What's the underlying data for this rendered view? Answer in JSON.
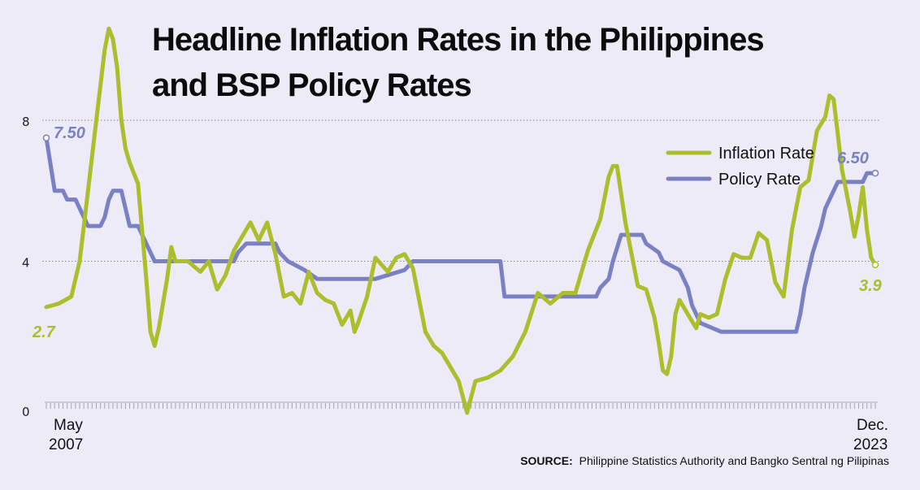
{
  "title_lines": [
    "Headline Inflation Rates in the Philippines",
    "and BSP Policy Rates"
  ],
  "source_label": "SOURCE:",
  "source_text": "Philippine Statistics Authority and Bangko Sentral ng Pilipinas",
  "start_date": [
    "May",
    "2007"
  ],
  "end_date": [
    "Dec.",
    "2023"
  ],
  "chart_data": {
    "type": "line",
    "x_range": [
      "2007-05",
      "2023-12"
    ],
    "ylim": [
      0,
      8
    ],
    "y_ticks": [
      "0",
      "4",
      "8"
    ],
    "grid": "horizontal dotted",
    "legend_position": "top-right",
    "colors": {
      "inflation": "#adbe2d",
      "policy": "#7a80c4"
    },
    "annotations": {
      "inflation_start": "2.7",
      "inflation_end": "3.9",
      "policy_start": "7.50",
      "policy_end": "6.50"
    },
    "series": [
      {
        "name": "Inflation Rate",
        "key": "inflation",
        "points": [
          [
            "2007-05",
            2.7
          ],
          [
            "2007-08",
            2.8
          ],
          [
            "2007-11",
            3.0
          ],
          [
            "2008-01",
            4.0
          ],
          [
            "2008-03",
            6.0
          ],
          [
            "2008-05",
            8.0
          ],
          [
            "2008-07",
            10.0
          ],
          [
            "2008-08",
            10.6
          ],
          [
            "2008-09",
            10.3
          ],
          [
            "2008-10",
            9.5
          ],
          [
            "2008-11",
            8.0
          ],
          [
            "2008-12",
            7.2
          ],
          [
            "2009-01",
            6.8
          ],
          [
            "2009-03",
            6.2
          ],
          [
            "2009-05",
            3.5
          ],
          [
            "2009-06",
            2.0
          ],
          [
            "2009-07",
            1.6
          ],
          [
            "2009-08",
            2.1
          ],
          [
            "2009-10",
            3.5
          ],
          [
            "2009-11",
            4.4
          ],
          [
            "2009-12",
            4.0
          ],
          [
            "2010-03",
            4.0
          ],
          [
            "2010-06",
            3.7
          ],
          [
            "2010-08",
            4.0
          ],
          [
            "2010-10",
            3.2
          ],
          [
            "2010-12",
            3.6
          ],
          [
            "2011-02",
            4.3
          ],
          [
            "2011-04",
            4.7
          ],
          [
            "2011-06",
            5.1
          ],
          [
            "2011-08",
            4.6
          ],
          [
            "2011-10",
            5.1
          ],
          [
            "2011-12",
            4.2
          ],
          [
            "2012-02",
            3.0
          ],
          [
            "2012-04",
            3.1
          ],
          [
            "2012-06",
            2.8
          ],
          [
            "2012-08",
            3.7
          ],
          [
            "2012-10",
            3.1
          ],
          [
            "2012-12",
            2.9
          ],
          [
            "2013-02",
            2.8
          ],
          [
            "2013-04",
            2.2
          ],
          [
            "2013-06",
            2.6
          ],
          [
            "2013-07",
            2.0
          ],
          [
            "2013-08",
            2.3
          ],
          [
            "2013-10",
            3.0
          ],
          [
            "2013-12",
            4.1
          ],
          [
            "2014-03",
            3.7
          ],
          [
            "2014-05",
            4.1
          ],
          [
            "2014-07",
            4.2
          ],
          [
            "2014-09",
            3.8
          ],
          [
            "2014-10",
            3.2
          ],
          [
            "2014-12",
            2.0
          ],
          [
            "2015-02",
            1.6
          ],
          [
            "2015-04",
            1.4
          ],
          [
            "2015-06",
            1.0
          ],
          [
            "2015-08",
            0.6
          ],
          [
            "2015-10",
            -0.3
          ],
          [
            "2015-12",
            0.6
          ],
          [
            "2016-03",
            0.7
          ],
          [
            "2016-06",
            0.9
          ],
          [
            "2016-09",
            1.3
          ],
          [
            "2016-12",
            2.0
          ],
          [
            "2017-03",
            3.1
          ],
          [
            "2017-06",
            2.8
          ],
          [
            "2017-09",
            3.1
          ],
          [
            "2017-12",
            3.1
          ],
          [
            "2018-03",
            4.3
          ],
          [
            "2018-06",
            5.2
          ],
          [
            "2018-08",
            6.4
          ],
          [
            "2018-09",
            6.7
          ],
          [
            "2018-10",
            6.7
          ],
          [
            "2018-12",
            5.1
          ],
          [
            "2019-03",
            3.3
          ],
          [
            "2019-05",
            3.2
          ],
          [
            "2019-07",
            2.4
          ],
          [
            "2019-08",
            1.7
          ],
          [
            "2019-09",
            0.9
          ],
          [
            "2019-10",
            0.8
          ],
          [
            "2019-11",
            1.3
          ],
          [
            "2019-12",
            2.5
          ],
          [
            "2020-01",
            2.9
          ],
          [
            "2020-03",
            2.5
          ],
          [
            "2020-05",
            2.1
          ],
          [
            "2020-06",
            2.5
          ],
          [
            "2020-08",
            2.4
          ],
          [
            "2020-10",
            2.5
          ],
          [
            "2020-12",
            3.5
          ],
          [
            "2021-02",
            4.2
          ],
          [
            "2021-04",
            4.1
          ],
          [
            "2021-06",
            4.1
          ],
          [
            "2021-08",
            4.8
          ],
          [
            "2021-10",
            4.6
          ],
          [
            "2021-12",
            3.4
          ],
          [
            "2022-02",
            3.0
          ],
          [
            "2022-04",
            4.9
          ],
          [
            "2022-06",
            6.1
          ],
          [
            "2022-08",
            6.3
          ],
          [
            "2022-10",
            7.7
          ],
          [
            "2022-12",
            8.1
          ],
          [
            "2023-01",
            8.7
          ],
          [
            "2023-02",
            8.6
          ],
          [
            "2023-04",
            6.6
          ],
          [
            "2023-06",
            5.4
          ],
          [
            "2023-07",
            4.7
          ],
          [
            "2023-08",
            5.3
          ],
          [
            "2023-09",
            6.1
          ],
          [
            "2023-10",
            4.9
          ],
          [
            "2023-11",
            4.1
          ],
          [
            "2023-12",
            3.9
          ]
        ]
      },
      {
        "name": "Policy Rate",
        "key": "policy",
        "points": [
          [
            "2007-05",
            7.5
          ],
          [
            "2007-07",
            6.0
          ],
          [
            "2007-09",
            6.0
          ],
          [
            "2007-10",
            5.75
          ],
          [
            "2007-12",
            5.75
          ],
          [
            "2008-03",
            5.0
          ],
          [
            "2008-06",
            5.0
          ],
          [
            "2008-07",
            5.25
          ],
          [
            "2008-08",
            5.75
          ],
          [
            "2008-09",
            6.0
          ],
          [
            "2008-11",
            6.0
          ],
          [
            "2008-12",
            5.5
          ],
          [
            "2009-01",
            5.0
          ],
          [
            "2009-03",
            5.0
          ],
          [
            "2009-05",
            4.5
          ],
          [
            "2009-07",
            4.0
          ],
          [
            "2011-02",
            4.0
          ],
          [
            "2011-03",
            4.25
          ],
          [
            "2011-05",
            4.5
          ],
          [
            "2011-12",
            4.5
          ],
          [
            "2012-01",
            4.25
          ],
          [
            "2012-03",
            4.0
          ],
          [
            "2012-07",
            3.75
          ],
          [
            "2012-10",
            3.5
          ],
          [
            "2013-12",
            3.5
          ],
          [
            "2014-07",
            3.75
          ],
          [
            "2014-09",
            4.0
          ],
          [
            "2016-06",
            4.0
          ],
          [
            "2016-07",
            3.0
          ],
          [
            "2018-05",
            3.0
          ],
          [
            "2018-06",
            3.25
          ],
          [
            "2018-08",
            3.5
          ],
          [
            "2018-09",
            4.0
          ],
          [
            "2018-11",
            4.75
          ],
          [
            "2019-04",
            4.75
          ],
          [
            "2019-05",
            4.5
          ],
          [
            "2019-08",
            4.25
          ],
          [
            "2019-09",
            4.0
          ],
          [
            "2020-01",
            3.75
          ],
          [
            "2020-03",
            3.25
          ],
          [
            "2020-04",
            2.75
          ],
          [
            "2020-06",
            2.25
          ],
          [
            "2020-11",
            2.0
          ],
          [
            "2022-05",
            2.0
          ],
          [
            "2022-06",
            2.5
          ],
          [
            "2022-07",
            3.25
          ],
          [
            "2022-09",
            4.25
          ],
          [
            "2022-11",
            5.0
          ],
          [
            "2022-12",
            5.5
          ],
          [
            "2023-02",
            6.0
          ],
          [
            "2023-03",
            6.25
          ],
          [
            "2023-09",
            6.25
          ],
          [
            "2023-10",
            6.5
          ],
          [
            "2023-12",
            6.5
          ]
        ]
      }
    ]
  }
}
